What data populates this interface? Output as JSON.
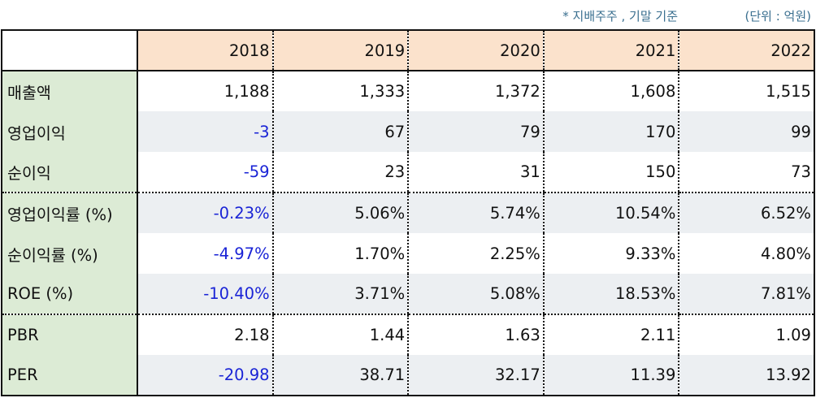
{
  "notes": {
    "basis": "* 지배주주 , 기말 기준",
    "unit": "(단위 : 억원)"
  },
  "colors": {
    "header_bg": "#fbe2cc",
    "label_bg": "#dcebd5",
    "alt_row_bg": "#eceff2",
    "negative_text": "#1a24d6"
  },
  "table": {
    "years": [
      "2018",
      "2019",
      "2020",
      "2021",
      "2022"
    ],
    "rows": [
      {
        "label": "매출액",
        "values": [
          "1,188",
          "1,333",
          "1,372",
          "1,608",
          "1,515"
        ]
      },
      {
        "label": "영업이익",
        "values": [
          "-3",
          "67",
          "79",
          "170",
          "99"
        ]
      },
      {
        "label": "순이익",
        "values": [
          "-59",
          "23",
          "31",
          "150",
          "73"
        ]
      },
      {
        "label": "영업이익률 (%)",
        "values": [
          "-0.23%",
          "5.06%",
          "5.74%",
          "10.54%",
          "6.52%"
        ]
      },
      {
        "label": "순이익률 (%)",
        "values": [
          "-4.97%",
          "1.70%",
          "2.25%",
          "9.33%",
          "4.80%"
        ]
      },
      {
        "label": "ROE (%)",
        "values": [
          "-10.40%",
          "3.71%",
          "5.08%",
          "18.53%",
          "7.81%"
        ]
      },
      {
        "label": "PBR",
        "values": [
          "2.18",
          "1.44",
          "1.63",
          "2.11",
          "1.09"
        ]
      },
      {
        "label": "PER",
        "values": [
          "-20.98",
          "38.71",
          "32.17",
          "11.39",
          "13.92"
        ]
      }
    ]
  }
}
